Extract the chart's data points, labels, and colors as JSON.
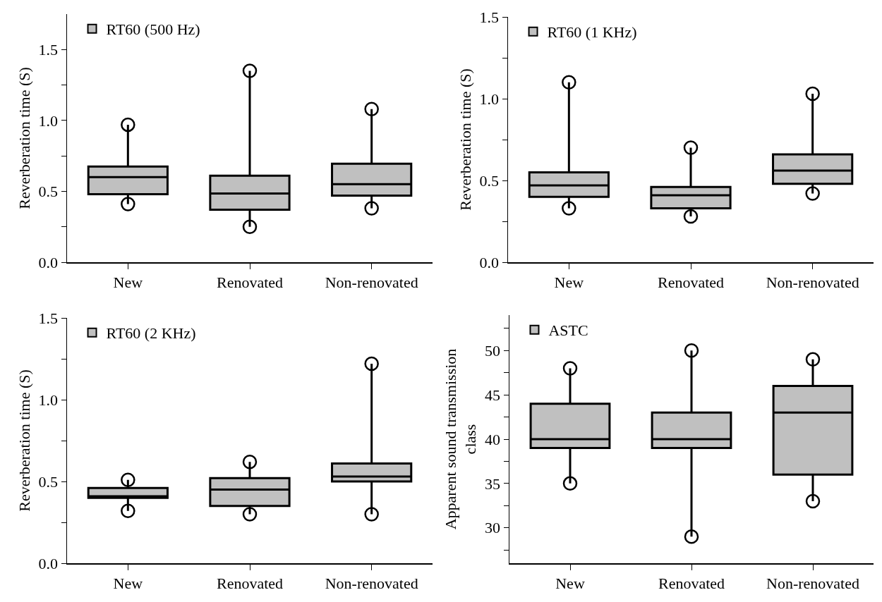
{
  "chart_data": [
    {
      "type": "box",
      "ylabel": "Reverberation time (S)",
      "categories": [
        "New",
        "Renovated",
        "Non-renovated"
      ],
      "ylim": [
        0,
        1.75
      ],
      "yticks": [
        {
          "value": 0,
          "label": "0.0"
        },
        {
          "value": 0.25,
          "label": null
        },
        0.5,
        {
          "value": 0.75,
          "label": null
        },
        {
          "value": 1,
          "label": "1.0"
        },
        {
          "value": 1.25,
          "label": null
        },
        1.5
      ],
      "legend": "top left",
      "marker": "circle",
      "grid": false,
      "series": [
        {
          "name": "RT60 (500 Hz)",
          "color": "#c0c0c0",
          "boxes": [
            {
              "low": 0.41,
              "q1": 0.48,
              "median": 0.6,
              "q3": 0.675,
              "high": 0.97,
              "outliers": [
                0.41,
                0.97
              ]
            },
            {
              "low": 0.25,
              "q1": 0.37,
              "median": 0.485,
              "q3": 0.61,
              "high": 1.35,
              "outliers": [
                0.25,
                1.35
              ]
            },
            {
              "low": 0.38,
              "q1": 0.47,
              "median": 0.55,
              "q3": 0.695,
              "high": 1.08,
              "outliers": [
                0.38,
                1.08
              ]
            }
          ]
        }
      ]
    },
    {
      "type": "box",
      "ylabel": "Reverberation time (S)",
      "categories": [
        "New",
        "Renovated",
        "Non-renovated"
      ],
      "ylim": [
        0,
        1.5
      ],
      "yticks": [
        {
          "value": 0,
          "label": "0.0"
        },
        {
          "value": 0.25,
          "label": null
        },
        0.5,
        {
          "value": 0.75,
          "label": null
        },
        {
          "value": 1,
          "label": "1.0"
        },
        {
          "value": 1.25,
          "label": null
        },
        1.5
      ],
      "legend": "top left",
      "marker": "circle",
      "grid": false,
      "series": [
        {
          "name": "RT60 (1 KHz)",
          "color": "#c0c0c0",
          "boxes": [
            {
              "low": 0.33,
              "q1": 0.4,
              "median": 0.47,
              "q3": 0.55,
              "high": 1.1,
              "outliers": [
                0.33,
                1.1
              ]
            },
            {
              "low": 0.28,
              "q1": 0.33,
              "median": 0.41,
              "q3": 0.46,
              "high": 0.7,
              "outliers": [
                0.28,
                0.7
              ]
            },
            {
              "low": 0.42,
              "q1": 0.48,
              "median": 0.56,
              "q3": 0.66,
              "high": 1.03,
              "outliers": [
                0.42,
                1.03
              ]
            }
          ]
        }
      ]
    },
    {
      "type": "box",
      "ylabel": "Reverberation time (S)",
      "categories": [
        "New",
        "Renovated",
        "Non-renovated"
      ],
      "ylim": [
        0,
        1.5
      ],
      "yticks": [
        {
          "value": 0,
          "label": "0.0"
        },
        {
          "value": 0.25,
          "label": null
        },
        0.5,
        {
          "value": 0.75,
          "label": null
        },
        {
          "value": 1,
          "label": "1.0"
        },
        {
          "value": 1.25,
          "label": null
        },
        1.5
      ],
      "legend": "top left",
      "marker": "circle",
      "grid": false,
      "series": [
        {
          "name": "RT60 (2 KHz)",
          "color": "#c0c0c0",
          "boxes": [
            {
              "low": 0.32,
              "q1": 0.4,
              "median": 0.41,
              "q3": 0.46,
              "high": 0.51,
              "outliers": [
                0.32,
                0.51
              ]
            },
            {
              "low": 0.3,
              "q1": 0.35,
              "median": 0.45,
              "q3": 0.52,
              "high": 0.62,
              "outliers": [
                0.3,
                0.62
              ]
            },
            {
              "low": 0.3,
              "q1": 0.5,
              "median": 0.53,
              "q3": 0.61,
              "high": 1.22,
              "outliers": [
                0.3,
                1.22
              ]
            }
          ]
        }
      ]
    },
    {
      "type": "box",
      "ylabel": "Apparent sound transmission\nclass",
      "categories": [
        "New",
        "Renovated",
        "Non-renovated"
      ],
      "ylim": [
        26,
        54
      ],
      "yticks": [
        {
          "value": 27.5,
          "label": null
        },
        30,
        {
          "value": 32.5,
          "label": null
        },
        35,
        {
          "value": 37.5,
          "label": null
        },
        40,
        {
          "value": 42.5,
          "label": null
        },
        45,
        {
          "value": 47.5,
          "label": null
        },
        50,
        {
          "value": 52.5,
          "label": null
        }
      ],
      "legend": "top left",
      "marker": "circle",
      "grid": false,
      "series": [
        {
          "name": "ASTC",
          "color": "#c0c0c0",
          "boxes": [
            {
              "low": 35,
              "q1": 39,
              "median": 40,
              "q3": 44,
              "high": 48,
              "outliers": [
                35,
                48
              ]
            },
            {
              "low": 29,
              "q1": 39,
              "median": 40,
              "q3": 43,
              "high": 50,
              "outliers": [
                29,
                50
              ]
            },
            {
              "low": 33,
              "q1": 36,
              "median": 43,
              "q3": 46,
              "high": 49,
              "outliers": [
                33,
                49
              ]
            }
          ]
        }
      ]
    }
  ]
}
